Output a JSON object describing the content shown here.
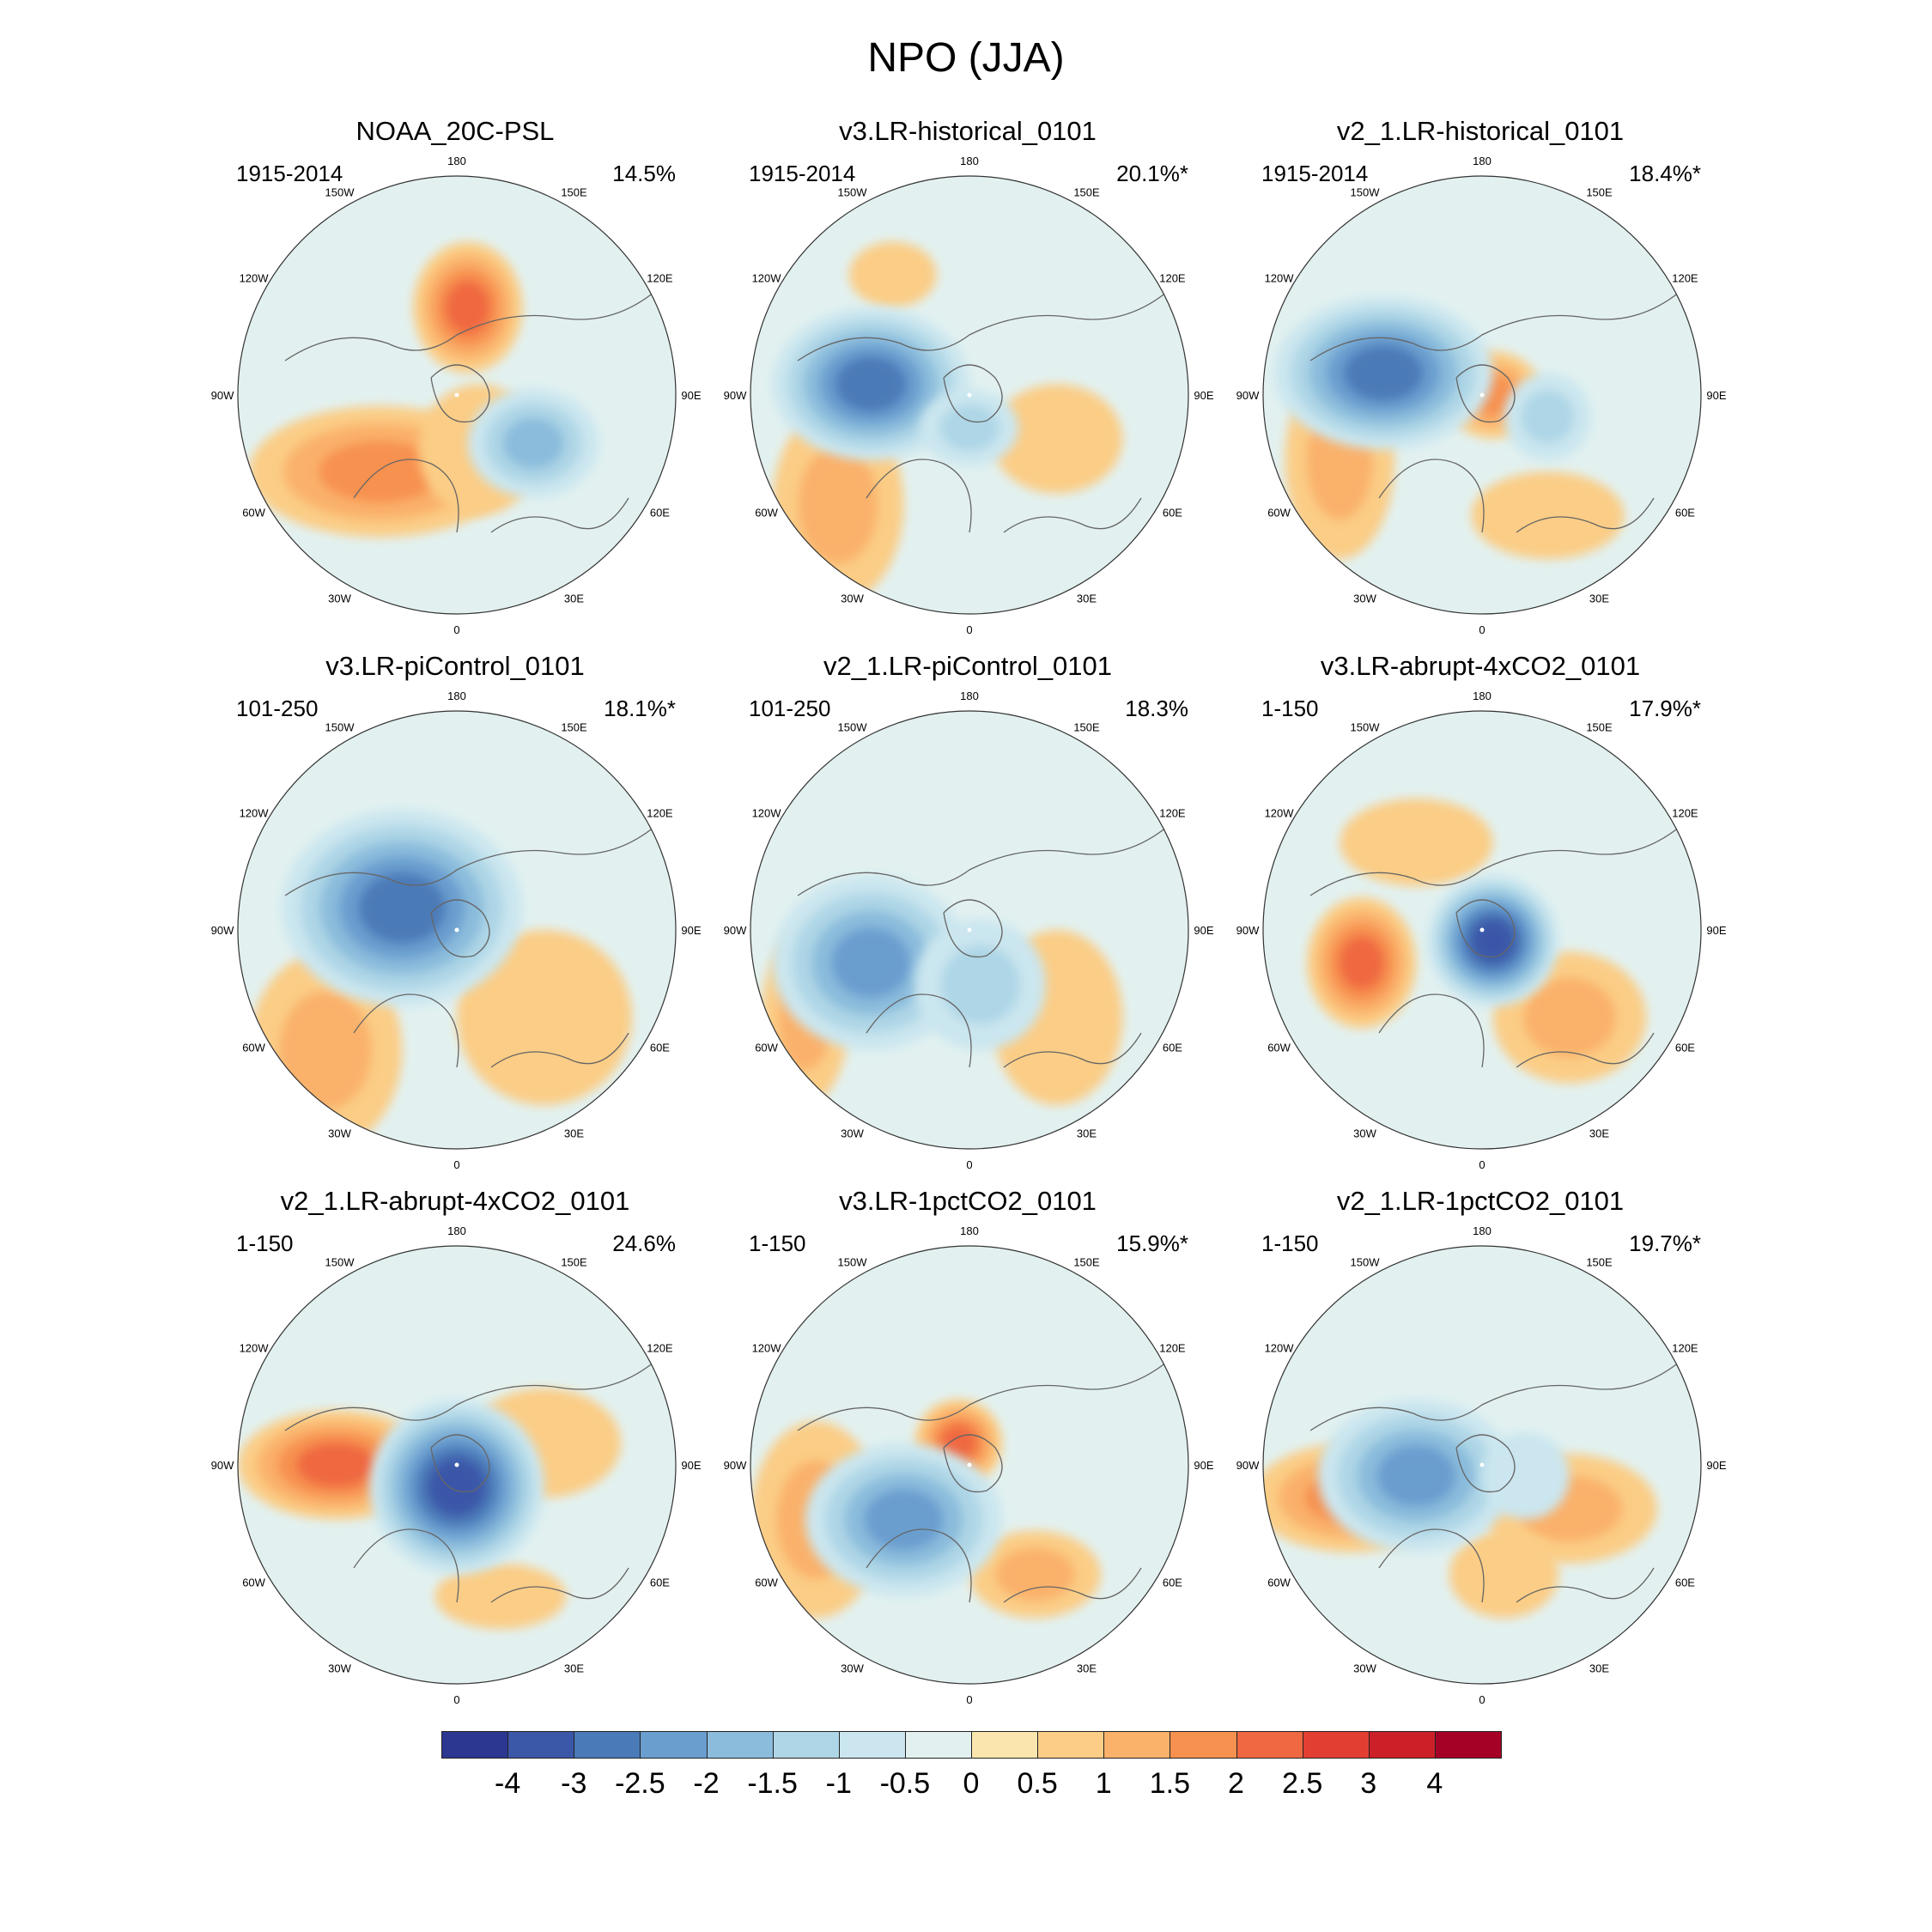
{
  "figure_title": "NPO (JJA)",
  "panels": [
    {
      "title": "NOAA_20C-PSL",
      "period": "1915-2014",
      "percent": "14.5%",
      "lows": [
        [
          0.35,
          0.22,
          0.6,
          0.5,
          1.3
        ]
      ],
      "highs": [
        [
          -0.35,
          0.35,
          1.2,
          0.6,
          1.6
        ],
        [
          0.05,
          -0.4,
          0.5,
          0.6,
          1.8
        ],
        [
          0.1,
          0.25,
          0.55,
          0.6,
          0.6
        ]
      ]
    },
    {
      "title": "v3.LR-historical_0101",
      "period": "1915-2014",
      "percent": "20.1%*",
      "lows": [
        [
          -0.45,
          -0.05,
          0.9,
          0.7,
          2.7
        ],
        [
          0.0,
          0.15,
          0.45,
          0.35,
          1.1
        ]
      ],
      "highs": [
        [
          -0.6,
          0.5,
          0.6,
          0.9,
          1.1
        ],
        [
          0.4,
          0.2,
          0.6,
          0.5,
          0.7
        ],
        [
          -0.35,
          -0.55,
          0.4,
          0.3,
          0.5
        ]
      ]
    },
    {
      "title": "v2_1.LR-historical_0101",
      "period": "1915-2014",
      "percent": "18.4%*",
      "lows": [
        [
          -0.45,
          -0.1,
          1.0,
          0.7,
          2.3
        ],
        [
          0.3,
          0.1,
          0.4,
          0.4,
          0.8
        ]
      ],
      "highs": [
        [
          0.05,
          0.0,
          0.45,
          0.4,
          1.7
        ],
        [
          -0.65,
          0.3,
          0.5,
          0.9,
          1.0
        ],
        [
          0.3,
          0.55,
          0.7,
          0.4,
          0.7
        ]
      ]
    },
    {
      "title": "v3.LR-piControl_0101",
      "period": "101-250",
      "percent": "18.1%*",
      "lows": [
        [
          -0.25,
          -0.1,
          1.1,
          0.9,
          2.3
        ]
      ],
      "highs": [
        [
          -0.6,
          0.55,
          0.7,
          0.9,
          1.2
        ],
        [
          0.4,
          0.4,
          0.8,
          0.8,
          0.7
        ],
        [
          0.05,
          0.0,
          0.2,
          0.2,
          0.6
        ]
      ]
    },
    {
      "title": "v2_1.LR-piControl_0101",
      "period": "101-250",
      "percent": "18.3%",
      "lows": [
        [
          -0.45,
          0.15,
          0.9,
          0.8,
          1.9
        ],
        [
          0.05,
          0.25,
          0.6,
          0.6,
          1.2
        ]
      ],
      "highs": [
        [
          -0.75,
          0.4,
          0.4,
          0.8,
          1.0
        ],
        [
          0.4,
          0.4,
          0.6,
          0.8,
          0.6
        ]
      ]
    },
    {
      "title": "v3.LR-abrupt-4xCO2_0101",
      "period": "1-150",
      "percent": "17.9%*",
      "lows": [
        [
          0.05,
          0.05,
          0.6,
          0.6,
          3.7
        ]
      ],
      "highs": [
        [
          -0.55,
          0.15,
          0.5,
          0.6,
          1.8
        ],
        [
          0.4,
          0.4,
          0.7,
          0.6,
          0.8
        ],
        [
          -0.3,
          -0.4,
          0.7,
          0.4,
          0.6
        ]
      ]
    },
    {
      "title": "v2_1.LR-abrupt-4xCO2_0101",
      "period": "1-150",
      "percent": "24.6%",
      "lows": [
        [
          0.0,
          0.1,
          0.8,
          0.8,
          3.4
        ]
      ],
      "highs": [
        [
          -0.55,
          0.0,
          0.9,
          0.5,
          2.2
        ],
        [
          0.4,
          -0.1,
          0.7,
          0.5,
          0.7
        ],
        [
          0.2,
          0.6,
          0.6,
          0.3,
          0.6
        ]
      ]
    },
    {
      "title": "v3.LR-1pctCO2_0101",
      "period": "1-150",
      "percent": "15.9%*",
      "lows": [
        [
          -0.3,
          0.25,
          0.9,
          0.7,
          2.0
        ]
      ],
      "highs": [
        [
          -0.05,
          -0.1,
          0.4,
          0.4,
          1.8
        ],
        [
          -0.7,
          0.25,
          0.6,
          0.9,
          1.2
        ],
        [
          0.3,
          0.5,
          0.6,
          0.4,
          0.8
        ]
      ]
    },
    {
      "title": "v2_1.LR-1pctCO2_0101",
      "period": "1-150",
      "percent": "19.7%*",
      "lows": [
        [
          -0.3,
          0.05,
          0.9,
          0.7,
          2.1
        ],
        [
          0.2,
          0.05,
          0.4,
          0.4,
          0.7
        ]
      ],
      "highs": [
        [
          -0.6,
          0.15,
          0.9,
          0.5,
          1.6
        ],
        [
          0.4,
          0.2,
          0.8,
          0.5,
          0.8
        ],
        [
          0.1,
          0.5,
          0.5,
          0.4,
          0.6
        ]
      ]
    }
  ],
  "lon_labels": {
    "deg180": "180",
    "deg150w": "150W",
    "deg150e": "150E",
    "deg120w": "120W",
    "deg120e": "120E",
    "deg90w": "90W",
    "deg90e": "90E",
    "deg60w": "60W",
    "deg60e": "60E",
    "deg30w": "30W",
    "deg30e": "30E",
    "deg0": "0"
  },
  "colorbar": {
    "labels": [
      "-4",
      "-3",
      "-2.5",
      "-2",
      "-1.5",
      "-1",
      "-0.5",
      "0",
      "0.5",
      "1",
      "1.5",
      "2",
      "2.5",
      "3",
      "4"
    ],
    "colors": [
      "#2c3791",
      "#3b57a8",
      "#4b7ab8",
      "#6a9ecf",
      "#8bbcdc",
      "#aed6e6",
      "#cbe6ef",
      "#e2f1f0",
      "#f9e5ad",
      "#fbcd86",
      "#fab16a",
      "#f7914f",
      "#ef6841",
      "#e23f32",
      "#cb2028",
      "#a50026"
    ]
  }
}
